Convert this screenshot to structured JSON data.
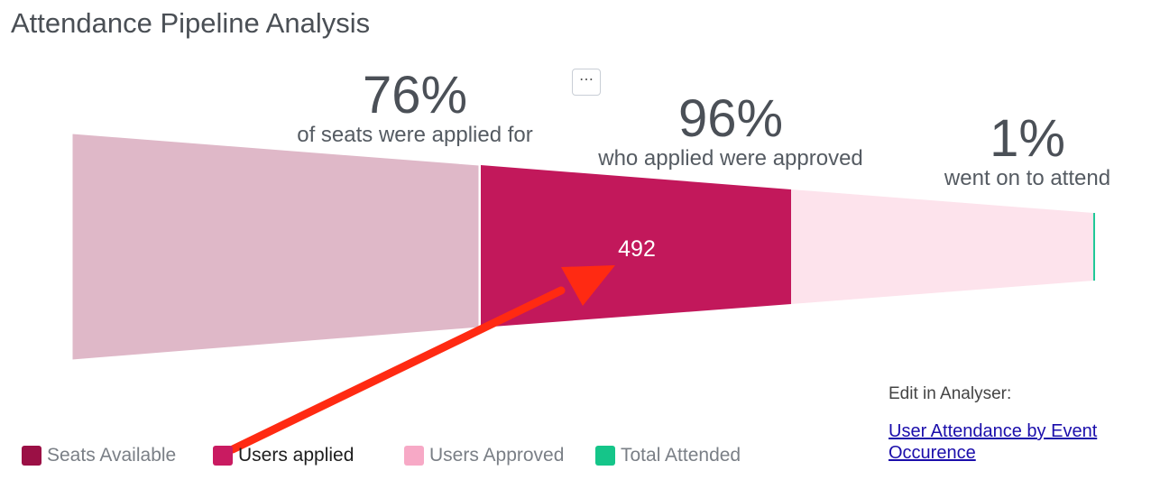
{
  "title": "Attendance Pipeline Analysis",
  "menu_button": "⋯",
  "chart_data": {
    "type": "funnel",
    "stages": [
      {
        "name": "Seats Available",
        "color": "#dfb8c8"
      },
      {
        "name": "Users applied",
        "color": "#c2185b",
        "value": 492,
        "value_label": "492"
      },
      {
        "name": "Users Approved",
        "color": "#fde3ec"
      },
      {
        "name": "Total Attended",
        "color": "#20c997"
      }
    ],
    "conversion_labels": [
      {
        "percent": "76%",
        "text": "of seats were applied for"
      },
      {
        "percent": "96%",
        "text": "who applied were approved"
      },
      {
        "percent": "1%",
        "text": "went on to attend"
      }
    ]
  },
  "legend": [
    {
      "label": "Seats Available",
      "color": "#9b1045"
    },
    {
      "label": "Users applied",
      "color": "#c91b61"
    },
    {
      "label": "Users Approved",
      "color": "#f7a9c6"
    },
    {
      "label": "Total Attended",
      "color": "#15c589"
    }
  ],
  "annotation": {
    "type": "arrow",
    "color": "#ff2a12"
  },
  "edit": {
    "label": "Edit in Analyser:",
    "link_text": "User Attendance by Event Occurence"
  }
}
